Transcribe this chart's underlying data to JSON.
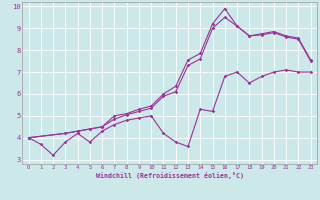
{
  "xlabel": "Windchill (Refroidissement éolien,°C)",
  "bg_color": "#cce8e8",
  "line_color": "#993399",
  "xlim": [
    -0.5,
    23.5
  ],
  "ylim": [
    2.8,
    10.2
  ],
  "yticks": [
    3,
    4,
    5,
    6,
    7,
    8,
    9,
    10
  ],
  "xticks": [
    0,
    1,
    2,
    3,
    4,
    5,
    6,
    7,
    8,
    9,
    10,
    11,
    12,
    13,
    14,
    15,
    16,
    17,
    18,
    19,
    20,
    21,
    22,
    23
  ],
  "line1_x": [
    0,
    1,
    2,
    3,
    4,
    5,
    6,
    7,
    8,
    9,
    10,
    11,
    12,
    13,
    14,
    15,
    16,
    17,
    18,
    19,
    20,
    21,
    22,
    23
  ],
  "line1_y": [
    4.0,
    3.7,
    3.2,
    3.8,
    4.2,
    3.8,
    4.3,
    4.6,
    4.8,
    4.9,
    5.0,
    4.2,
    3.8,
    3.6,
    5.3,
    5.2,
    6.8,
    7.0,
    6.5,
    6.8,
    7.0,
    7.1,
    7.0,
    7.0
  ],
  "line2_x": [
    0,
    3,
    4,
    5,
    6,
    7,
    8,
    9,
    10,
    11,
    12,
    13,
    14,
    15,
    16,
    17,
    18,
    19,
    20,
    21,
    22,
    23
  ],
  "line2_y": [
    4.0,
    4.2,
    4.3,
    4.4,
    4.5,
    4.85,
    5.05,
    5.2,
    5.35,
    5.9,
    6.1,
    7.3,
    7.6,
    9.0,
    9.5,
    9.1,
    8.65,
    8.7,
    8.8,
    8.6,
    8.5,
    7.5
  ],
  "line3_x": [
    0,
    3,
    4,
    5,
    6,
    7,
    8,
    9,
    10,
    11,
    12,
    13,
    14,
    15,
    16,
    17,
    18,
    19,
    20,
    21,
    22,
    23
  ],
  "line3_y": [
    4.0,
    4.2,
    4.3,
    4.4,
    4.5,
    5.0,
    5.1,
    5.3,
    5.45,
    6.0,
    6.35,
    7.55,
    7.85,
    9.2,
    9.9,
    9.1,
    8.65,
    8.75,
    8.85,
    8.65,
    8.55,
    7.55
  ]
}
